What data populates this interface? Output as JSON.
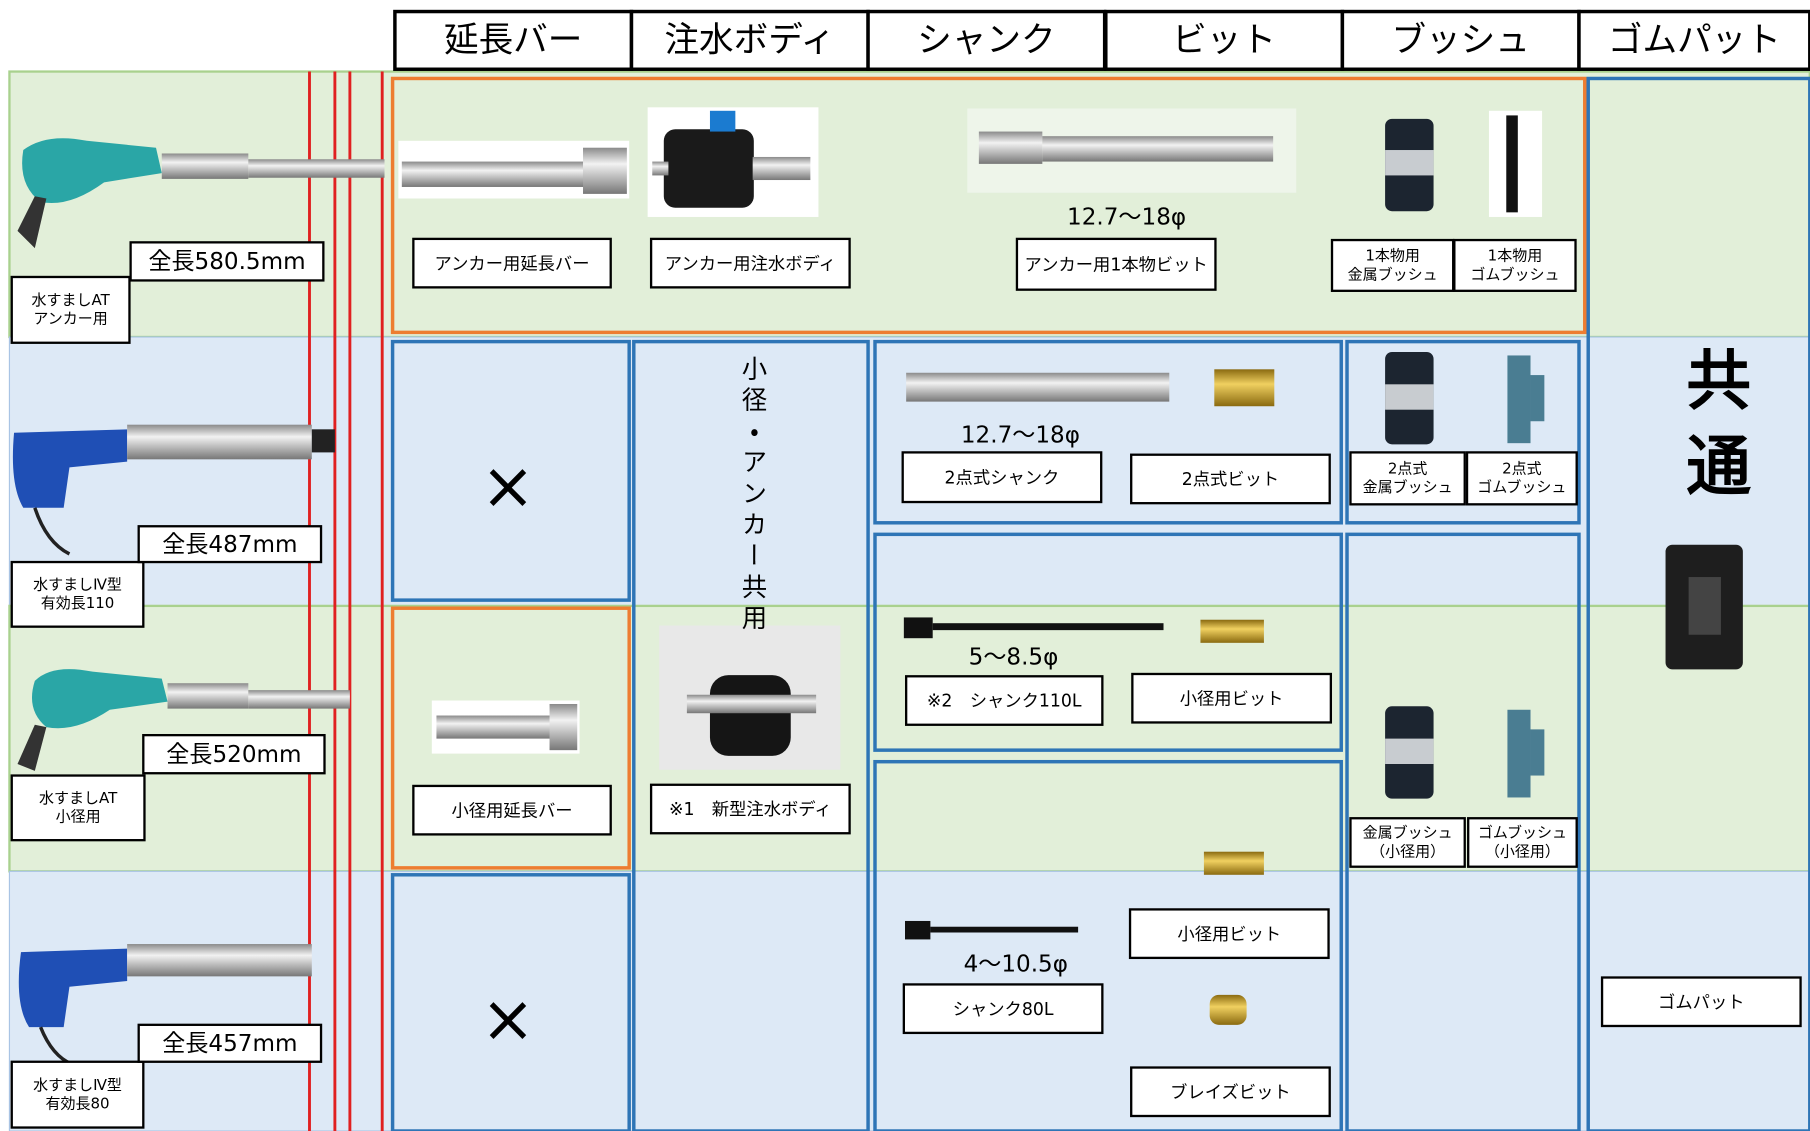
{
  "header": [
    "延長バー",
    "注水ボディ",
    "シャンク",
    "ビット",
    "ブッシュ",
    "ゴムパット"
  ],
  "tools": [
    {
      "name": [
        "水すましAT",
        "アンカー用"
      ],
      "length": "全長580.5mm"
    },
    {
      "name": [
        "水すましⅣ型",
        "有効長110"
      ],
      "length": "全長487mm"
    },
    {
      "name": [
        "水すましAT",
        "小径用"
      ],
      "length": "全長520mm"
    },
    {
      "name": [
        "水すましⅣ型",
        "有効長80"
      ],
      "length": "全長457mm"
    }
  ],
  "parts": {
    "extension_bars": [
      "アンカー用延長バー",
      "小径用延長バー"
    ],
    "not_applicable": [
      "×",
      "×"
    ],
    "water_bodies": [
      "アンカー用注水ボディ",
      "※1　新型注水ボディ"
    ],
    "water_body_shared_note": "小径・アンカー共用",
    "anchor_bit": {
      "diameter": "12.7～18φ",
      "label": "アンカー用1本物ビット"
    },
    "shanks": [
      {
        "diameter": "12.7～18φ",
        "label": "2点式シャンク"
      },
      {
        "diameter": "5～8.5φ",
        "label": "※2　シャンク110L"
      },
      {
        "diameter": "4～10.5φ",
        "label": "シャンク80L"
      }
    ],
    "bits": [
      "2点式ビット",
      "小径用ビット",
      "小径用ビット",
      "ブレイズビット"
    ],
    "bushes": [
      [
        "1本物用",
        "金属ブッシュ"
      ],
      [
        "1本物用",
        "ゴムブッシュ"
      ],
      [
        "2点式",
        "金属ブッシュ"
      ],
      [
        "2点式",
        "ゴムブッシュ"
      ],
      [
        "金属ブッシュ",
        "（小径用）"
      ],
      [
        "ゴムブッシュ",
        "（小径用）"
      ]
    ],
    "rubber_pad": {
      "common": "共通",
      "label": "ゴムパット"
    }
  }
}
